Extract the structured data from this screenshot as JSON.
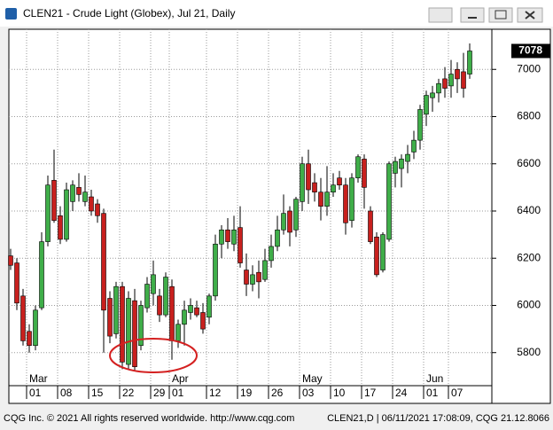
{
  "chart_data": {
    "type": "candlestick",
    "title": "CLEN21 - Crude Light (Globex), Jul 21, Daily",
    "copyright": "CQG Inc. © 2021 All rights reserved worldwide. http://www.cqg.com",
    "status": "CLEN21,D | 06/11/2021 17:08:09, CQG 21.12.8066",
    "categories": [
      null,
      null,
      null,
      "01",
      null,
      null,
      null,
      null,
      "08",
      null,
      null,
      null,
      null,
      "15",
      null,
      null,
      null,
      null,
      "22",
      null,
      null,
      null,
      null,
      "29",
      null,
      null,
      "01",
      null,
      null,
      null,
      null,
      null,
      "12",
      null,
      null,
      null,
      null,
      "19",
      null,
      null,
      null,
      null,
      "26",
      null,
      null,
      null,
      null,
      "03",
      null,
      null,
      null,
      null,
      "10",
      null,
      null,
      null,
      null,
      "17",
      null,
      null,
      null,
      null,
      "24",
      null,
      null,
      null,
      null,
      "01",
      null,
      null,
      null,
      "07",
      null,
      null,
      null
    ],
    "months": [
      {
        "label": "Mar",
        "index": 3
      },
      {
        "label": "Apr",
        "index": 26
      },
      {
        "label": "May",
        "index": 47
      },
      {
        "label": "Jun",
        "index": 67
      }
    ],
    "open": [
      6210,
      6180,
      6040,
      5890,
      5830,
      5990,
      6270,
      6530,
      6380,
      6280,
      6440,
      6500,
      6440,
      6460,
      6430,
      6390,
      6030,
      5880,
      6080,
      5750,
      6020,
      5830,
      5990,
      6050,
      6040,
      5960,
      6080,
      5850,
      5920,
      5970,
      5990,
      5970,
      5950,
      6040,
      6260,
      6320,
      6260,
      6330,
      6150,
      6090,
      6140,
      6110,
      6190,
      6250,
      6320,
      6400,
      6320,
      6440,
      6600,
      6520,
      6480,
      6420,
      6480,
      6540,
      6510,
      6360,
      6540,
      6620,
      6400,
      6290,
      6150,
      6280,
      6560,
      6580,
      6610,
      6650,
      6700,
      6810,
      6880,
      6900,
      6960,
      6930,
      7000,
      6990,
      6980
    ],
    "high": [
      6240,
      6200,
      6070,
      5920,
      6000,
      6310,
      6550,
      6660,
      6420,
      6520,
      6530,
      6560,
      6550,
      6490,
      6450,
      6410,
      6060,
      6100,
      6100,
      6060,
      6070,
      6020,
      6120,
      6190,
      6070,
      6140,
      6110,
      5940,
      6020,
      6030,
      6020,
      6010,
      6050,
      6300,
      6340,
      6370,
      6380,
      6420,
      6220,
      6170,
      6190,
      6240,
      6300,
      6380,
      6470,
      6420,
      6460,
      6630,
      6660,
      6560,
      6540,
      6590,
      6560,
      6570,
      6540,
      6560,
      6640,
      6640,
      6420,
      6310,
      6310,
      6610,
      6630,
      6640,
      6680,
      6740,
      6850,
      6910,
      6930,
      6960,
      7010,
      7040,
      7030,
      7070,
      7110
    ],
    "low": [
      6150,
      5980,
      5830,
      5800,
      5810,
      5980,
      6250,
      6350,
      6260,
      6270,
      6400,
      6440,
      6420,
      6380,
      6350,
      5800,
      5840,
      5860,
      5730,
      5730,
      5720,
      5810,
      5970,
      6000,
      5930,
      5950,
      5770,
      5820,
      5830,
      5940,
      5950,
      5880,
      5920,
      6020,
      6200,
      6240,
      6230,
      6160,
      6040,
      6060,
      6030,
      6100,
      6160,
      6230,
      6300,
      6250,
      6290,
      6400,
      6430,
      6440,
      6360,
      6380,
      6460,
      6490,
      6300,
      6330,
      6520,
      6410,
      6260,
      6120,
      6140,
      6270,
      6500,
      6500,
      6560,
      6620,
      6660,
      6760,
      6820,
      6860,
      6880,
      6880,
      6900,
      6880,
      6960
    ],
    "close": [
      6170,
      6010,
      5850,
      5830,
      5980,
      6270,
      6510,
      6360,
      6280,
      6490,
      6510,
      6470,
      6480,
      6400,
      6380,
      5980,
      5870,
      6080,
      5760,
      6030,
      5740,
      6000,
      6090,
      6130,
      5960,
      6120,
      5850,
      5920,
      5980,
      6000,
      5960,
      5900,
      6040,
      6260,
      6320,
      6270,
      6320,
      6180,
      6090,
      6130,
      6100,
      6190,
      6250,
      6320,
      6390,
      6310,
      6450,
      6600,
      6490,
      6480,
      6420,
      6480,
      6510,
      6510,
      6350,
      6540,
      6630,
      6500,
      6270,
      6130,
      6300,
      6600,
      6610,
      6620,
      6640,
      6700,
      6830,
      6890,
      6900,
      6940,
      6920,
      6980,
      6960,
      6920,
      7078
    ],
    "up_color": "#3fae49",
    "down_color": "#c8201e",
    "ylim": [
      5660,
      7170
    ],
    "yticks": [
      5800,
      6000,
      6200,
      6400,
      6600,
      6800,
      7000
    ],
    "grid": true
  }
}
